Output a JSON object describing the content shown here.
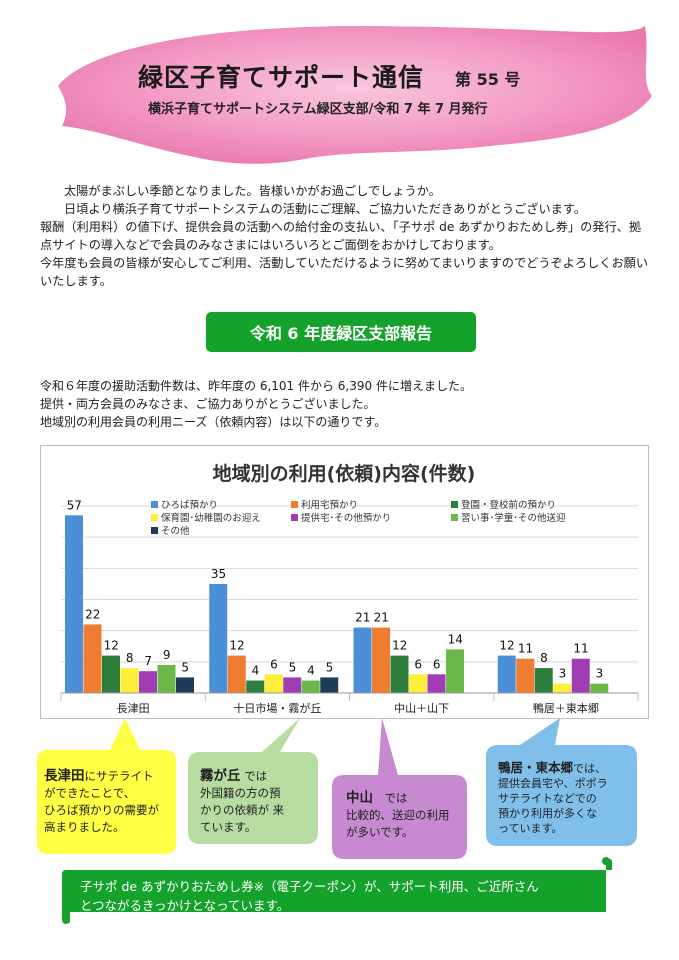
{
  "header": {
    "title": "緑区子育てサポート通信",
    "issue": "第 55 号",
    "subtitle": "横浜子育てサポートシステム緑区支部/令和 7 年 7 月発行"
  },
  "intro": {
    "line1": "太陽がまぶしい季節となりました。皆様いかがお過ごしでしょうか。",
    "line2": "日頃より横浜子育てサポートシステムの活動にご理解、ご協力いただきありがとうございます。",
    "line3": "報酬（利用料）の値下げ、提供会員の活動への給付金の支払い、「子サポ de あずかりおためし券」の発行、拠点サイトの導入などで会員のみなさまにはいろいろとご面倒をおかけしております。",
    "line4": "今年度も会員の皆様が安心してご利用、活動していただけるように努めてまいりますのでどうぞよろしくお願いいたします。"
  },
  "section": {
    "heading": "令和 6 年度緑区支部報告"
  },
  "report": {
    "line1": "令和６年度の援助活動件数は、昨年度の 6,101 件から 6,390 件に増えました。",
    "line2": "提供・両方会員のみなさま、ご協力ありがとうございました。",
    "line3": "地域別の利用会員の利用ニーズ（依頼内容）は以下の通りです。"
  },
  "chart_data": {
    "type": "bar",
    "title": "地域別の利用(依頼)内容(件数)",
    "categories": [
      "長津田",
      "十日市場・霧が丘",
      "中山＋山下",
      "鴨居＋東本郷"
    ],
    "ylim": [
      0,
      60
    ],
    "grid": true,
    "legend": "top",
    "series": [
      {
        "name": "ひろば預かり",
        "color": "#4a8fd8",
        "values": [
          57,
          35,
          21,
          12
        ]
      },
      {
        "name": "利用宅預かり",
        "color": "#ee7d31",
        "values": [
          22,
          12,
          21,
          11
        ]
      },
      {
        "name": "登園・登校前の預かり",
        "color": "#2e7d3a",
        "values": [
          12,
          4,
          12,
          8
        ]
      },
      {
        "name": "保育園･幼稚園のお迎え",
        "color": "#ffef3a",
        "values": [
          8,
          6,
          6,
          3
        ]
      },
      {
        "name": "提供宅･その他預かり",
        "color": "#a03cb4",
        "values": [
          7,
          5,
          6,
          11
        ]
      },
      {
        "name": "習い事･学童･その他送迎",
        "color": "#6ab94a",
        "values": [
          9,
          4,
          14,
          3
        ]
      },
      {
        "name": "その他",
        "color": "#1f3c5a",
        "values": [
          5,
          5,
          null,
          null
        ]
      }
    ]
  },
  "bubbles": {
    "nagatsuta": {
      "place": "長津田",
      "text1": "にサテライト",
      "text2": "ができたことで、",
      "text3": "ひろば預かりの需要が",
      "text4": "高まりました。"
    },
    "kirigaoka": {
      "place": "霧が丘",
      "text1": "では",
      "text2": "外国籍の方の預",
      "text3": "かりの依頼が 来",
      "text4": "ています。"
    },
    "nakayama": {
      "place": "中山",
      "text1": "では",
      "text2": "比較的、送迎の利用",
      "text3": "が多いです。"
    },
    "kamoi": {
      "place": "鴨居・東本郷",
      "text1": "では、",
      "text2": "提供会員宅や、ポポラ",
      "text3": "サテライトなどでの",
      "text4": "預かり利用が多くな",
      "text5": "っています。"
    }
  },
  "footer": {
    "line1": "子サポ de あずかりおためし券※（電子クーポン）が、サポート利用、ご近所さん",
    "line2": "とつながるきっかけとなっています。"
  }
}
